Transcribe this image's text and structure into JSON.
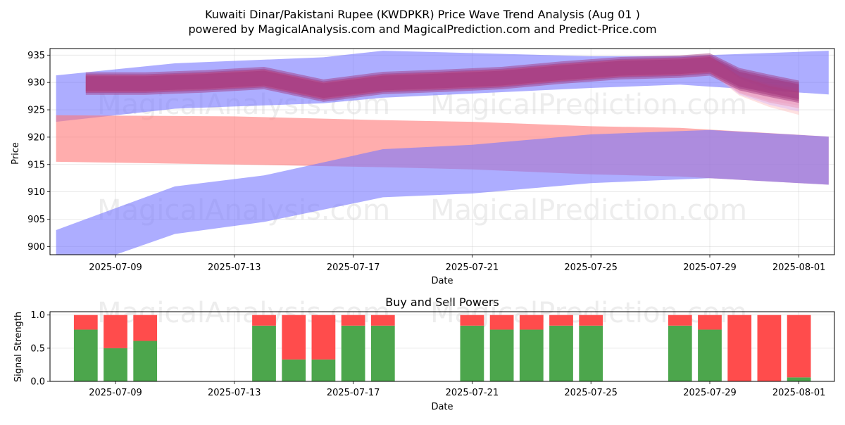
{
  "title_line1": "Kuwaiti Dinar/Pakistani Rupee (KWDPKR) Price Wave Trend Analysis (Aug 01 )",
  "title_line2": "powered by MagicalAnalysis.com and MagicalPrediction.com and Predict-Price.com",
  "watermarks": [
    "MagicalAnalysis.com",
    "MagicalPrediction.com"
  ],
  "chart_data": [
    {
      "type": "area",
      "title": "",
      "xlabel": "Date",
      "ylabel": "Price",
      "ylim": [
        898.5,
        936.2
      ],
      "yticks": [
        900,
        905,
        910,
        915,
        920,
        925,
        930,
        935
      ],
      "x_ticks": [
        "2025-07-09",
        "2025-07-13",
        "2025-07-17",
        "2025-07-21",
        "2025-07-25",
        "2025-07-29",
        "2025-08-01"
      ],
      "grid": true,
      "series": [
        {
          "color": "#7777ff",
          "x": [
            "2025-07-07",
            "2025-07-11",
            "2025-07-16",
            "2025-07-18",
            "2025-07-25",
            "2025-07-28",
            "2025-08-02"
          ],
          "upper": [
            931.3,
            933.5,
            934.6,
            935.8,
            934.8,
            934.8,
            935.8
          ],
          "lower": [
            922.8,
            925.2,
            926.2,
            927.2,
            929.0,
            929.6,
            927.8
          ]
        },
        {
          "color": "#ff7777",
          "x": [
            "2025-07-07",
            "2025-07-13",
            "2025-07-18",
            "2025-07-21",
            "2025-07-25",
            "2025-07-28",
            "2025-08-02"
          ],
          "upper": [
            924.0,
            923.8,
            923.1,
            922.8,
            922.0,
            921.7,
            920.1
          ],
          "lower": [
            915.5,
            915.0,
            914.5,
            914.1,
            913.2,
            912.8,
            911.3
          ]
        },
        {
          "color": "#7777ff",
          "x": [
            "2025-07-07",
            "2025-07-09",
            "2025-07-11",
            "2025-07-14",
            "2025-07-18",
            "2025-07-21",
            "2025-07-25",
            "2025-07-29",
            "2025-08-02"
          ],
          "upper": [
            903.0,
            907.0,
            911.0,
            913.0,
            917.8,
            918.6,
            920.5,
            921.3,
            920.1
          ],
          "lower": [
            898.5,
            898.5,
            902.3,
            904.5,
            909.0,
            909.7,
            911.6,
            912.5,
            911.3
          ]
        }
      ],
      "wave_band": {
        "color": "#a0307a",
        "x": [
          "2025-07-08",
          "2025-07-10",
          "2025-07-12",
          "2025-07-14",
          "2025-07-16",
          "2025-07-18",
          "2025-07-20",
          "2025-07-22",
          "2025-07-24",
          "2025-07-26",
          "2025-07-28",
          "2025-07-29",
          "2025-07-30",
          "2025-07-31",
          "2025-08-01",
          "2025-08-01"
        ],
        "mid": [
          929.8,
          929.8,
          930.2,
          930.8,
          928.5,
          929.9,
          930.3,
          930.8,
          931.8,
          932.6,
          932.9,
          933.3,
          930.6,
          929.4,
          928.3,
          927.8
        ],
        "half_width": 1.7,
        "fan": [
          {
            "color": "#ff5555",
            "end": 926.3
          },
          {
            "color": "#ffaaaa",
            "end": 924.7
          },
          {
            "color": "#ccaaff",
            "end": 925.5
          },
          {
            "color": "#ee99bb",
            "end": 927.0
          }
        ]
      }
    },
    {
      "type": "bar",
      "title": "Buy and Sell Powers",
      "xlabel": "Date",
      "ylabel": "Signal Strength",
      "ylim": [
        0,
        1.05
      ],
      "yticks": [
        "0.0",
        "0.5",
        "1.0"
      ],
      "x_ticks": [
        "2025-07-09",
        "2025-07-13",
        "2025-07-17",
        "2025-07-21",
        "2025-07-25",
        "2025-07-29",
        "2025-08-01"
      ],
      "colors": {
        "buy": "#4ca64c",
        "sell": "#ff4c4c"
      },
      "bars": [
        {
          "date": "2025-07-08",
          "buy": 0.78
        },
        {
          "date": "2025-07-09",
          "buy": 0.5
        },
        {
          "date": "2025-07-10",
          "buy": 0.61
        },
        {
          "date": "2025-07-14",
          "buy": 0.84
        },
        {
          "date": "2025-07-15",
          "buy": 0.33
        },
        {
          "date": "2025-07-16",
          "buy": 0.33
        },
        {
          "date": "2025-07-17",
          "buy": 0.84
        },
        {
          "date": "2025-07-18",
          "buy": 0.84
        },
        {
          "date": "2025-07-21",
          "buy": 0.84
        },
        {
          "date": "2025-07-22",
          "buy": 0.78
        },
        {
          "date": "2025-07-23",
          "buy": 0.78
        },
        {
          "date": "2025-07-24",
          "buy": 0.84
        },
        {
          "date": "2025-07-25",
          "buy": 0.84
        },
        {
          "date": "2025-07-28",
          "buy": 0.84
        },
        {
          "date": "2025-07-29",
          "buy": 0.78
        },
        {
          "date": "2025-07-30",
          "buy": 0.0
        },
        {
          "date": "2025-07-31",
          "buy": 0.0
        },
        {
          "date": "2025-08-01",
          "buy": 0.06
        }
      ]
    }
  ]
}
